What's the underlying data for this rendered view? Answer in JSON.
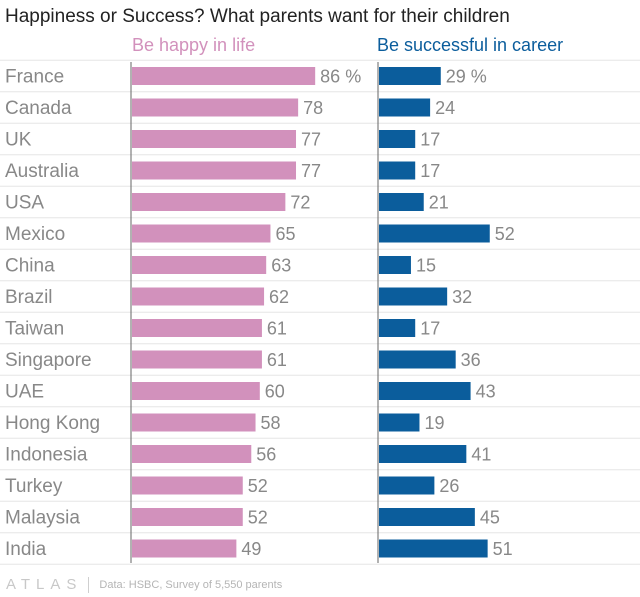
{
  "title": "Happiness or Success? What parents want for their children",
  "footer": {
    "logo": "ATLAS",
    "source": "Data: HSBC, Survey of 5,550 parents"
  },
  "colors": {
    "happy": "#d291bc",
    "success": "#0b5d9c",
    "grid": "#e6e6e6",
    "axis": "#666666",
    "label": "#888888"
  },
  "chart_data": {
    "type": "bar",
    "orientation": "horizontal",
    "categories": [
      "France",
      "Canada",
      "UK",
      "Australia",
      "USA",
      "Mexico",
      "China",
      "Brazil",
      "Taiwan",
      "Singapore",
      "UAE",
      "Hong Kong",
      "Indonesia",
      "Turkey",
      "Malaysia",
      "India"
    ],
    "series": [
      {
        "name": "Be happy in life",
        "values": [
          86,
          78,
          77,
          77,
          72,
          65,
          63,
          62,
          61,
          61,
          60,
          58,
          56,
          52,
          52,
          49
        ]
      },
      {
        "name": "Be successful in career",
        "values": [
          29,
          24,
          17,
          17,
          21,
          52,
          15,
          32,
          17,
          36,
          43,
          19,
          41,
          26,
          45,
          51
        ]
      }
    ],
    "value_suffix_first_row": " %",
    "grid": true
  }
}
